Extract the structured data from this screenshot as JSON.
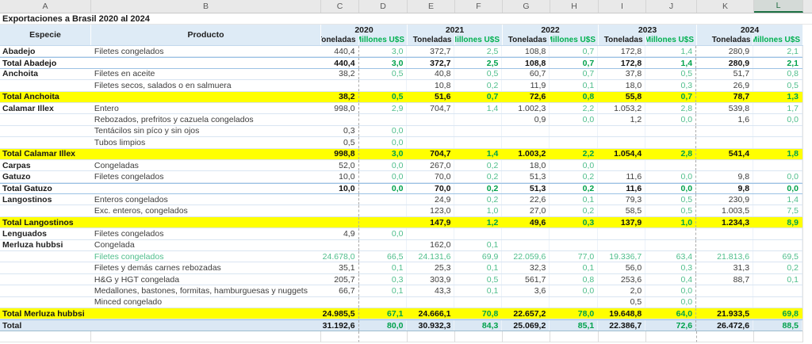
{
  "sheet": {
    "column_letters": [
      "A",
      "B",
      "C",
      "D",
      "E",
      "F",
      "G",
      "H",
      "I",
      "J",
      "K",
      "L"
    ],
    "selected_column": "L",
    "title": "Exportaciones a Brasil 2020 al 2024",
    "header": {
      "especie": "Especie",
      "producto": "Producto",
      "years": [
        {
          "year": "2020",
          "tonnes_label": "Toneladas",
          "value_label": "Millones U$S"
        },
        {
          "year": "2021",
          "tonnes_label": "Toneladas",
          "value_label": "Millones U$S"
        },
        {
          "year": "2022",
          "tonnes_label": "Toneladas",
          "value_label": "Millones U$S"
        },
        {
          "year": "2023",
          "tonnes_label": "Toneladas",
          "value_label": "Millones U$S"
        },
        {
          "year": "2024",
          "tonnes_label": "Toneladas",
          "value_label": "Millones U$S"
        }
      ]
    },
    "rows": [
      {
        "type": "data",
        "especie": "Abadejo",
        "producto": "Filetes congelados",
        "values": [
          "440,4",
          "3,0",
          "372,7",
          "2,5",
          "108,8",
          "0,7",
          "172,8",
          "1,4",
          "280,9",
          "2,1"
        ]
      },
      {
        "type": "subtotal",
        "especie": "Total Abadejo",
        "producto": "",
        "values": [
          "440,4",
          "3,0",
          "372,7",
          "2,5",
          "108,8",
          "0,7",
          "172,8",
          "1,4",
          "280,9",
          "2,1"
        ]
      },
      {
        "type": "data",
        "especie": "Anchoita",
        "producto": "Filetes en aceite",
        "values": [
          "38,2",
          "0,5",
          "40,8",
          "0,5",
          "60,7",
          "0,7",
          "37,8",
          "0,5",
          "51,7",
          "0,8"
        ]
      },
      {
        "type": "data",
        "especie": "",
        "producto": "Filetes secos, salados o en salmuera",
        "values": [
          "",
          "",
          "10,8",
          "0,2",
          "11,9",
          "0,1",
          "18,0",
          "0,3",
          "26,9",
          "0,5"
        ]
      },
      {
        "type": "total_yellow",
        "especie": "Total Anchoita",
        "producto": "",
        "values": [
          "38,2",
          "0,5",
          "51,6",
          "0,7",
          "72,6",
          "0,8",
          "55,8",
          "0,7",
          "78,7",
          "1,3"
        ]
      },
      {
        "type": "data",
        "especie": "Calamar Illex",
        "producto": "Entero",
        "values": [
          "998,0",
          "2,9",
          "704,7",
          "1,4",
          "1.002,3",
          "2,2",
          "1.053,2",
          "2,8",
          "539,8",
          "1,7"
        ]
      },
      {
        "type": "data",
        "especie": "",
        "producto": "Rebozados, prefritos y cazuela congelados",
        "values": [
          "",
          "",
          "",
          "",
          "0,9",
          "0,0",
          "1,2",
          "0,0",
          "1,6",
          "0,0"
        ]
      },
      {
        "type": "data",
        "especie": "",
        "producto": "Tentácilos sin píco y sin ojos",
        "values": [
          "0,3",
          "0,0",
          "",
          "",
          "",
          "",
          "",
          "",
          "",
          ""
        ]
      },
      {
        "type": "data",
        "especie": "",
        "producto": "Tubos limpios",
        "values": [
          "0,5",
          "0,0",
          "",
          "",
          "",
          "",
          "",
          "",
          "",
          ""
        ]
      },
      {
        "type": "total_yellow",
        "especie": "Total Calamar Illex",
        "producto": "",
        "values": [
          "998,8",
          "3,0",
          "704,7",
          "1,4",
          "1.003,2",
          "2,2",
          "1.054,4",
          "2,8",
          "541,4",
          "1,8"
        ]
      },
      {
        "type": "data",
        "especie": "Carpas",
        "producto": "Congeladas",
        "values": [
          "52,0",
          "0,0",
          "267,0",
          "0,2",
          "18,0",
          "0,0",
          "",
          "",
          "",
          ""
        ]
      },
      {
        "type": "data",
        "especie": "Gatuzo",
        "producto": "Filetes congelados",
        "values": [
          "10,0",
          "0,0",
          "70,0",
          "0,2",
          "51,3",
          "0,2",
          "11,6",
          "0,0",
          "9,8",
          "0,0"
        ]
      },
      {
        "type": "subtotal",
        "especie": "Total Gatuzo",
        "producto": "",
        "values": [
          "10,0",
          "0,0",
          "70,0",
          "0,2",
          "51,3",
          "0,2",
          "11,6",
          "0,0",
          "9,8",
          "0,0"
        ]
      },
      {
        "type": "data",
        "especie": "Langostinos",
        "producto": "Enteros congelados",
        "values": [
          "",
          "",
          "24,9",
          "0,2",
          "22,6",
          "0,1",
          "79,3",
          "0,5",
          "230,9",
          "1,4"
        ]
      },
      {
        "type": "data",
        "especie": "",
        "producto": "Exc. enteros, congelados",
        "values": [
          "",
          "",
          "123,0",
          "1,0",
          "27,0",
          "0,2",
          "58,5",
          "0,5",
          "1.003,5",
          "7,5"
        ]
      },
      {
        "type": "total_yellow",
        "especie": "Total Langostinos",
        "producto": "",
        "values": [
          "",
          "",
          "147,9",
          "1,2",
          "49,6",
          "0,3",
          "137,9",
          "1,0",
          "1.234,3",
          "8,9"
        ]
      },
      {
        "type": "data",
        "especie": "Lenguados",
        "producto": "Filetes congelados",
        "values": [
          "4,9",
          "0,0",
          "",
          "",
          "",
          "",
          "",
          "",
          "",
          ""
        ]
      },
      {
        "type": "data",
        "especie": "Merluza hubbsi",
        "producto": "Congelada",
        "values": [
          "",
          "",
          "162,0",
          "0,1",
          "",
          "",
          "",
          "",
          "",
          ""
        ]
      },
      {
        "type": "data_green",
        "especie": "",
        "producto": "Filetes congelados",
        "values": [
          "24.678,0",
          "66,5",
          "24.131,6",
          "69,9",
          "22.059,6",
          "77,0",
          "19.336,7",
          "63,4",
          "21.813,6",
          "69,5"
        ]
      },
      {
        "type": "data",
        "especie": "",
        "producto": "Filetes y demás carnes rebozadas",
        "values": [
          "35,1",
          "0,1",
          "25,3",
          "0,1",
          "32,3",
          "0,1",
          "56,0",
          "0,3",
          "31,3",
          "0,2"
        ]
      },
      {
        "type": "data",
        "especie": "",
        "producto": "H&G y HGT congelada",
        "values": [
          "205,7",
          "0,3",
          "303,9",
          "0,5",
          "561,7",
          "0,8",
          "253,6",
          "0,4",
          "88,7",
          "0,1"
        ]
      },
      {
        "type": "data",
        "especie": "",
        "producto": "Medallones, bastones, formitas, hamburguesas y nuggets",
        "values": [
          "66,7",
          "0,1",
          "43,3",
          "0,1",
          "3,6",
          "0,0",
          "2,0",
          "0,0",
          "",
          ""
        ]
      },
      {
        "type": "data",
        "especie": "",
        "producto": "Minced congelado",
        "values": [
          "",
          "",
          "",
          "",
          "",
          "",
          "0,5",
          "0,0",
          "",
          ""
        ]
      },
      {
        "type": "total_yellow",
        "especie": "Total Merluza hubbsi",
        "producto": "",
        "values": [
          "24.985,5",
          "67,1",
          "24.666,1",
          "70,8",
          "22.657,2",
          "78,0",
          "19.648,8",
          "64,0",
          "21.933,5",
          "69,8"
        ]
      },
      {
        "type": "grand_total",
        "especie": "Total",
        "producto": "",
        "values": [
          "31.192,6",
          "80,0",
          "30.932,3",
          "84,3",
          "25.069,2",
          "85,1",
          "22.386,7",
          "72,6",
          "26.472,6",
          "88,5"
        ]
      }
    ],
    "colors": {
      "header_fill": "#DEEBF6",
      "grand_fill": "#DBE8F4",
      "yellow": "#FFFF00",
      "green_header": "#00B050",
      "green_value": "#4FBE8C",
      "green_bold": "#00A14B",
      "selected_green": "#1E7145"
    }
  }
}
